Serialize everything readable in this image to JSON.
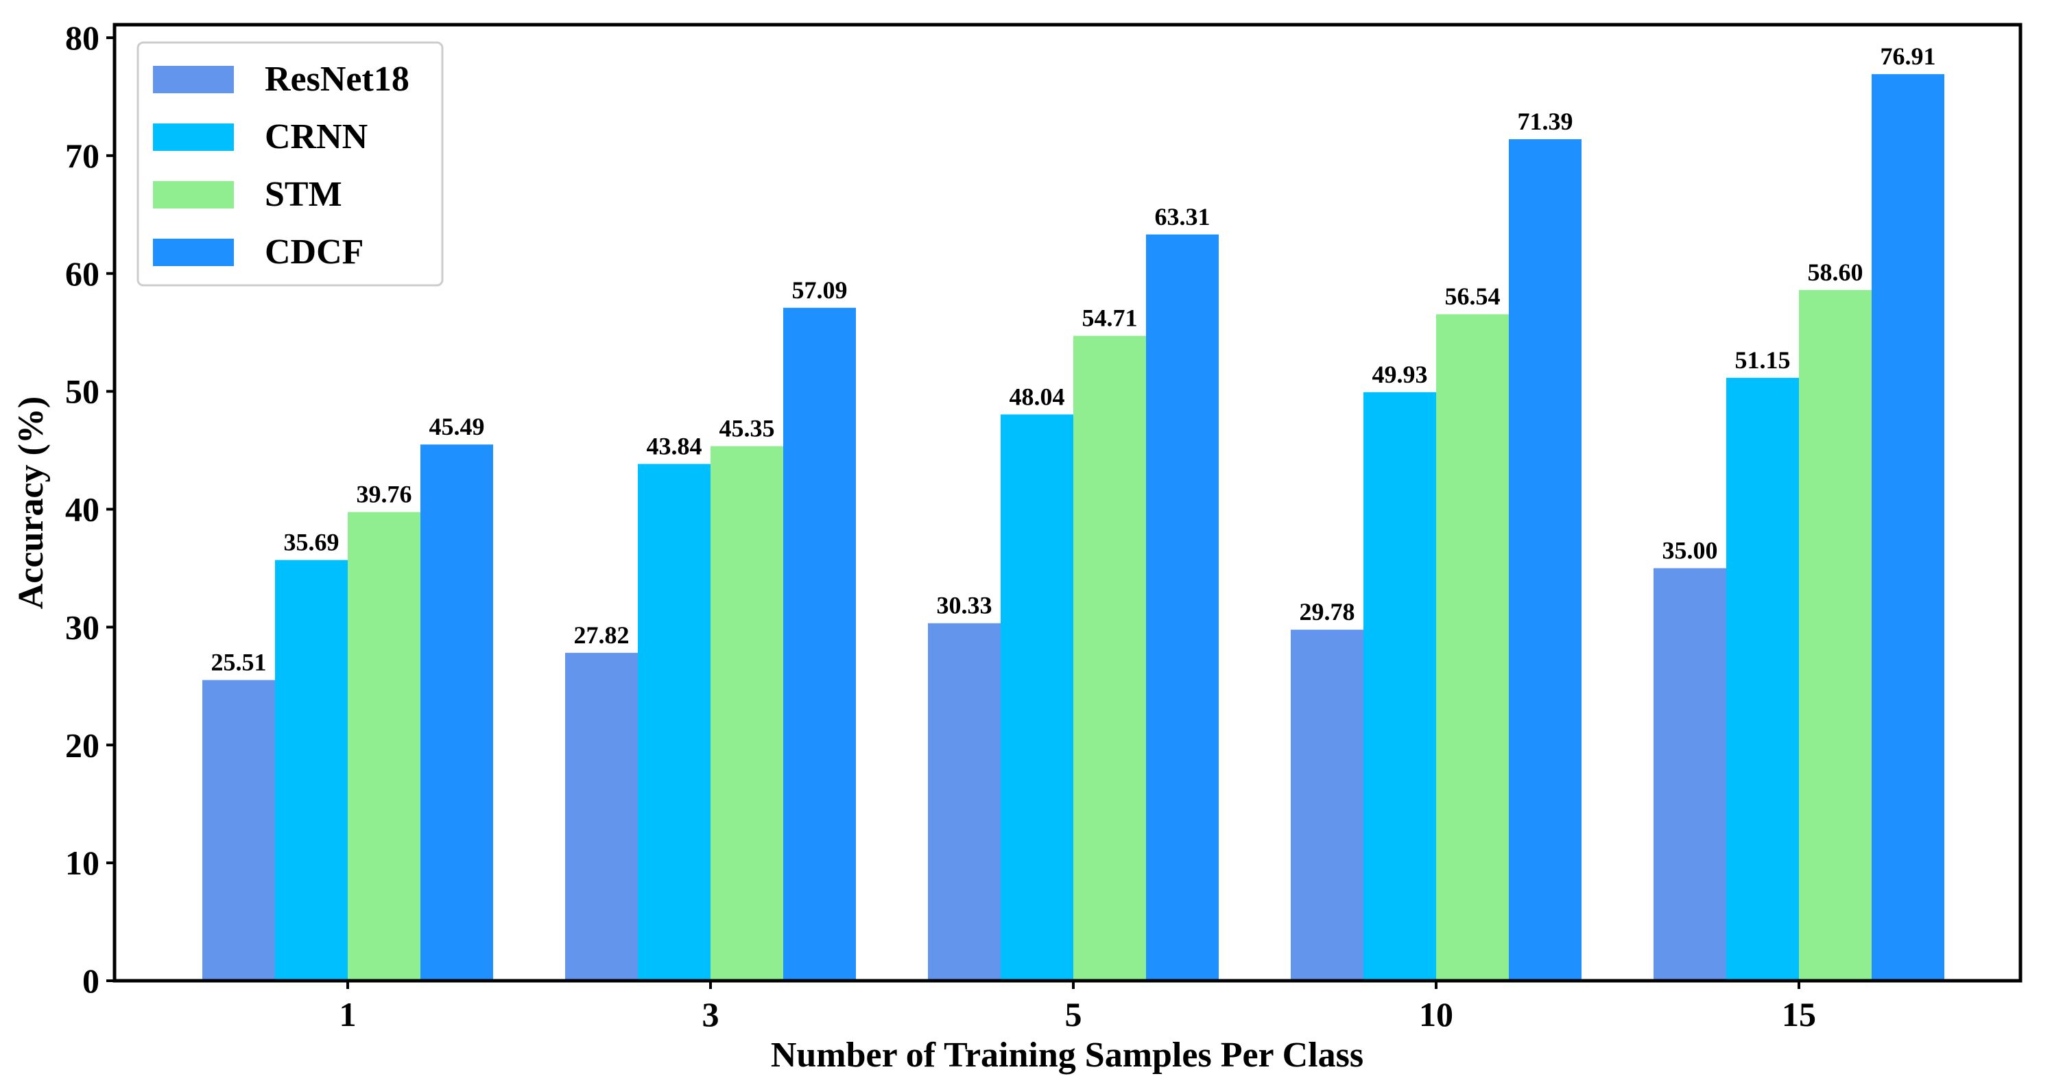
{
  "chart_data": {
    "type": "bar",
    "title": "",
    "xlabel": "Number of Training Samples Per Class",
    "ylabel": "Accuracy (%)",
    "ylim": [
      0,
      80
    ],
    "yticks": [
      "0",
      "10",
      "20",
      "30",
      "40",
      "50",
      "60",
      "70",
      "80"
    ],
    "categories": [
      "1",
      "3",
      "5",
      "10",
      "15"
    ],
    "series": [
      {
        "name": "ResNet18",
        "color": "#6495ED",
        "values": [
          25.51,
          27.82,
          30.33,
          29.78,
          35.0
        ],
        "labels": [
          "25.51",
          "27.82",
          "30.33",
          "29.78",
          "35.00"
        ]
      },
      {
        "name": "CRNN",
        "color": "#00BFFF",
        "values": [
          35.69,
          43.84,
          48.04,
          49.93,
          51.15
        ],
        "labels": [
          "35.69",
          "43.84",
          "48.04",
          "49.93",
          "51.15"
        ]
      },
      {
        "name": "STM",
        "color": "#90EE90",
        "values": [
          39.76,
          45.35,
          54.71,
          56.54,
          58.6
        ],
        "labels": [
          "39.76",
          "45.35",
          "54.71",
          "56.54",
          "58.60"
        ]
      },
      {
        "name": "CDCF",
        "color": "#1E90FF",
        "values": [
          45.49,
          57.09,
          63.31,
          71.39,
          76.91
        ],
        "labels": [
          "45.49",
          "57.09",
          "63.31",
          "71.39",
          "76.91"
        ]
      }
    ],
    "legend": "top-left",
    "grid": false
  }
}
